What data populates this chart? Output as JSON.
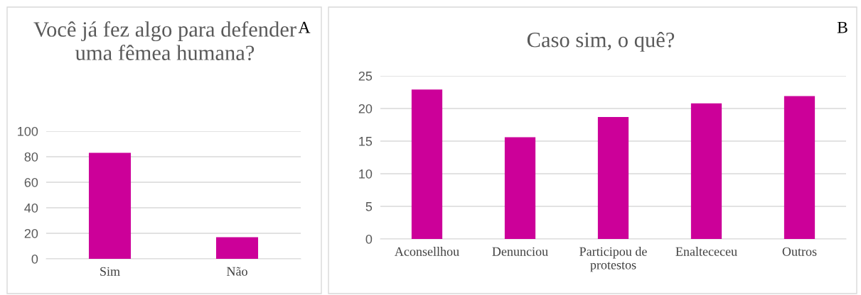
{
  "chart_data": [
    {
      "type": "bar",
      "title": "Você já fez algo para defender uma fêmea humana?",
      "categories": [
        "Sim",
        "Não"
      ],
      "values": [
        83,
        17
      ],
      "color": "#cc0099",
      "ylim": [
        0,
        100
      ],
      "yticks": [
        0,
        20,
        40,
        60,
        80,
        100
      ],
      "grid": "y",
      "annotations": [
        "A"
      ]
    },
    {
      "type": "bar",
      "title": "Caso sim, o quê?",
      "categories": [
        "Aconsellhou",
        "Denunciou",
        "Participou de\nprotestos",
        "Enaltececeu",
        "Outros"
      ],
      "values": [
        22.9,
        15.6,
        18.7,
        20.8,
        21.9
      ],
      "color": "#cc0099",
      "ylim": [
        0,
        25
      ],
      "yticks": [
        0,
        5,
        10,
        15,
        20,
        25
      ],
      "grid": "y",
      "annotations": [
        "B"
      ]
    }
  ]
}
